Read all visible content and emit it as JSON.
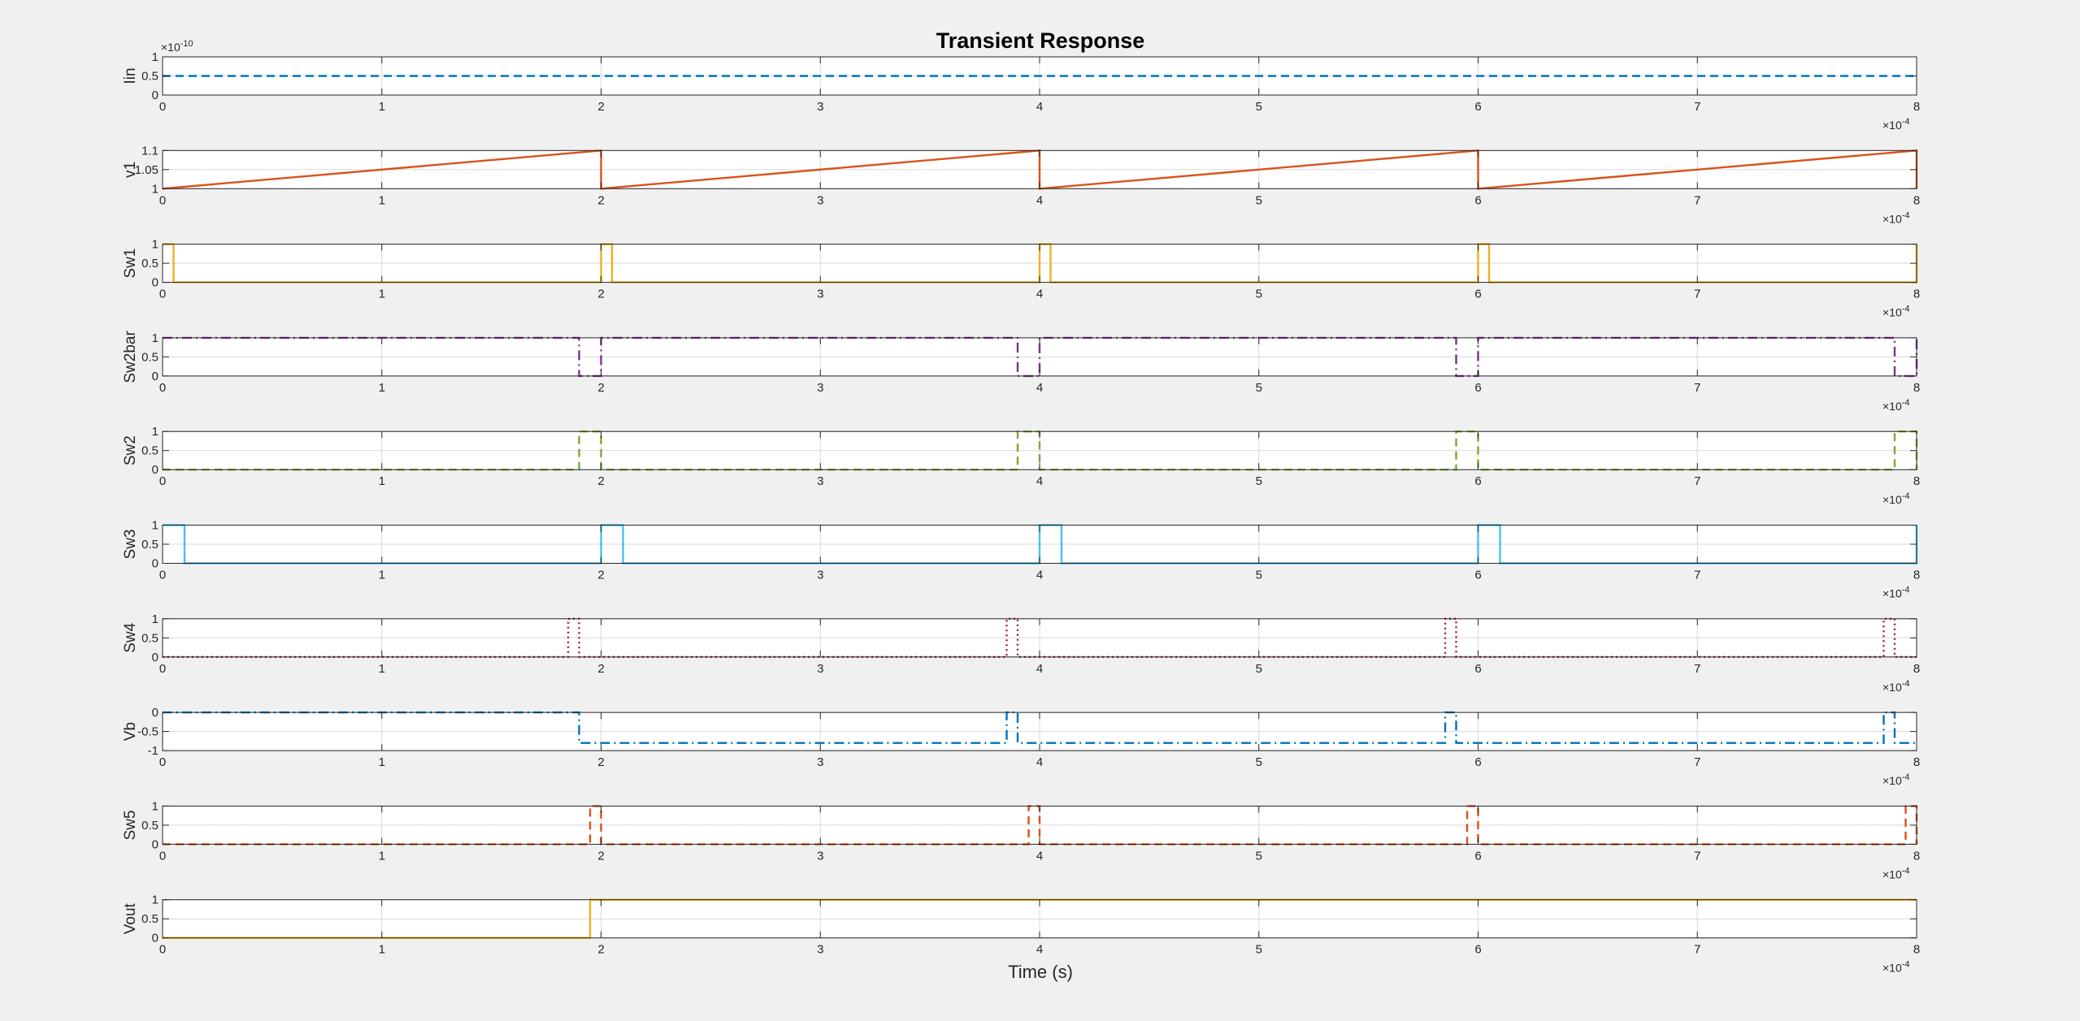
{
  "chart_data": {
    "type": "line",
    "title": "Transient Response",
    "xlabel": "Time (s)",
    "x_exponent_label": "×10",
    "x_exponent": "-4",
    "xlim": [
      0,
      8
    ],
    "xticks": [
      "0",
      "1",
      "2",
      "3",
      "4",
      "5",
      "6",
      "7",
      "8"
    ],
    "grid": true,
    "subplots": [
      {
        "name": "Iin",
        "color": "#0072BD",
        "style": "dashed",
        "ylim": [
          0,
          1
        ],
        "yticks": [
          0,
          0.5,
          1
        ],
        "ytick_labels": [
          "0",
          "0.5",
          "1"
        ],
        "y_exponent_label": "×10",
        "y_exponent": "-10",
        "x": [
          0,
          8
        ],
        "y": [
          0.5,
          0.5
        ]
      },
      {
        "name": "v1",
        "color": "#D95319",
        "style": "solid",
        "ylim": [
          1,
          1.1
        ],
        "yticks": [
          1,
          1.05,
          1.1
        ],
        "ytick_labels": [
          "1",
          "1.05",
          "1.1"
        ],
        "x": [
          0,
          2,
          2,
          4,
          4,
          6,
          6,
          8,
          8
        ],
        "y": [
          1,
          1.1,
          1,
          1.1,
          1,
          1.1,
          1,
          1.1,
          1
        ]
      },
      {
        "name": "Sw1",
        "color": "#EDB120",
        "style": "mixed",
        "ylim": [
          0,
          1
        ],
        "yticks": [
          0,
          0.5,
          1
        ],
        "ytick_labels": [
          "0",
          "0.5",
          "1"
        ],
        "x": [
          0,
          0.05,
          0.05,
          2,
          2,
          2.05,
          2.05,
          4,
          4,
          4.05,
          4.05,
          6,
          6,
          6.05,
          6.05,
          8,
          8
        ],
        "y": [
          1,
          1,
          0,
          0,
          1,
          1,
          0,
          0,
          1,
          1,
          0,
          0,
          1,
          1,
          0,
          0,
          1
        ]
      },
      {
        "name": "Sw2bar",
        "color": "#7E2F8E",
        "style": "dashdot",
        "ylim": [
          0,
          1
        ],
        "yticks": [
          0,
          0.5,
          1
        ],
        "ytick_labels": [
          "0",
          "0.5",
          "1"
        ],
        "x": [
          0,
          1.9,
          1.9,
          2,
          2,
          3.9,
          3.9,
          4,
          4,
          5.9,
          5.9,
          6,
          6,
          7.9,
          7.9,
          8,
          8
        ],
        "y": [
          1,
          1,
          0,
          0,
          1,
          1,
          0,
          0,
          1,
          1,
          0,
          0,
          1,
          1,
          0,
          0,
          1
        ]
      },
      {
        "name": "Sw2",
        "color": "#77AC30",
        "style": "dashed",
        "ylim": [
          0,
          1
        ],
        "yticks": [
          0,
          0.5,
          1
        ],
        "ytick_labels": [
          "0",
          "0.5",
          "1"
        ],
        "x": [
          0,
          1.9,
          1.9,
          2,
          2,
          3.9,
          3.9,
          4,
          4,
          5.9,
          5.9,
          6,
          6,
          7.9,
          7.9,
          8,
          8
        ],
        "y": [
          0,
          0,
          1,
          1,
          0,
          0,
          1,
          1,
          0,
          0,
          1,
          1,
          0,
          0,
          1,
          1,
          0
        ]
      },
      {
        "name": "Sw3",
        "color": "#4DBEEE",
        "style": "solid",
        "ylim": [
          0,
          1
        ],
        "yticks": [
          0,
          0.5,
          1
        ],
        "ytick_labels": [
          "0",
          "0.5",
          "1"
        ],
        "x": [
          0,
          0.1,
          0.1,
          2,
          2,
          2.1,
          2.1,
          4,
          4,
          4.1,
          4.1,
          6,
          6,
          6.1,
          6.1,
          8,
          8
        ],
        "y": [
          1,
          1,
          0,
          0,
          1,
          1,
          0,
          0,
          1,
          1,
          0,
          0,
          1,
          1,
          0,
          0,
          1
        ]
      },
      {
        "name": "Sw4",
        "color": "#A2142F",
        "style": "dotted",
        "ylim": [
          0,
          1
        ],
        "yticks": [
          0,
          0.5,
          1
        ],
        "ytick_labels": [
          "0",
          "0.5",
          "1"
        ],
        "x": [
          0,
          1.85,
          1.85,
          1.9,
          1.9,
          3.85,
          3.85,
          3.9,
          3.9,
          5.85,
          5.85,
          5.9,
          5.9,
          7.85,
          7.85,
          7.9,
          7.9,
          8
        ],
        "y": [
          0,
          0,
          1,
          1,
          0,
          0,
          1,
          1,
          0,
          0,
          1,
          1,
          0,
          0,
          1,
          1,
          0,
          0
        ]
      },
      {
        "name": "Vb",
        "color": "#0072BD",
        "style": "dashdot",
        "ylim": [
          -1,
          0
        ],
        "yticks": [
          -1,
          -0.5,
          0
        ],
        "ytick_labels": [
          "-1",
          "-0.5",
          "0"
        ],
        "x": [
          0,
          1.9,
          1.9,
          3.85,
          3.85,
          3.9,
          3.9,
          5.85,
          5.85,
          5.9,
          5.9,
          7.85,
          7.85,
          7.9,
          7.9,
          8
        ],
        "y": [
          0,
          0,
          -0.8,
          -0.8,
          0,
          0,
          -0.8,
          -0.8,
          0,
          0,
          -0.8,
          -0.8,
          0,
          0,
          -0.8,
          -0.8
        ]
      },
      {
        "name": "Sw5",
        "color": "#D95319",
        "style": "dashed",
        "ylim": [
          0,
          1
        ],
        "yticks": [
          0,
          0.5,
          1
        ],
        "ytick_labels": [
          "0",
          "0.5",
          "1"
        ],
        "x": [
          0,
          1.95,
          1.95,
          2,
          2,
          3.95,
          3.95,
          4,
          4,
          5.95,
          5.95,
          6,
          6,
          7.95,
          7.95,
          8,
          8
        ],
        "y": [
          0,
          0,
          1,
          1,
          0,
          0,
          1,
          1,
          0,
          0,
          1,
          1,
          0,
          0,
          1,
          1,
          0
        ]
      },
      {
        "name": "Vout",
        "color": "#EDB120",
        "style": "solid",
        "ylim": [
          0,
          1
        ],
        "yticks": [
          0,
          0.5,
          1
        ],
        "ytick_labels": [
          "0",
          "0.5",
          "1"
        ],
        "x": [
          0,
          1.95,
          1.95,
          8
        ],
        "y": [
          0,
          0,
          1,
          1
        ]
      }
    ]
  }
}
